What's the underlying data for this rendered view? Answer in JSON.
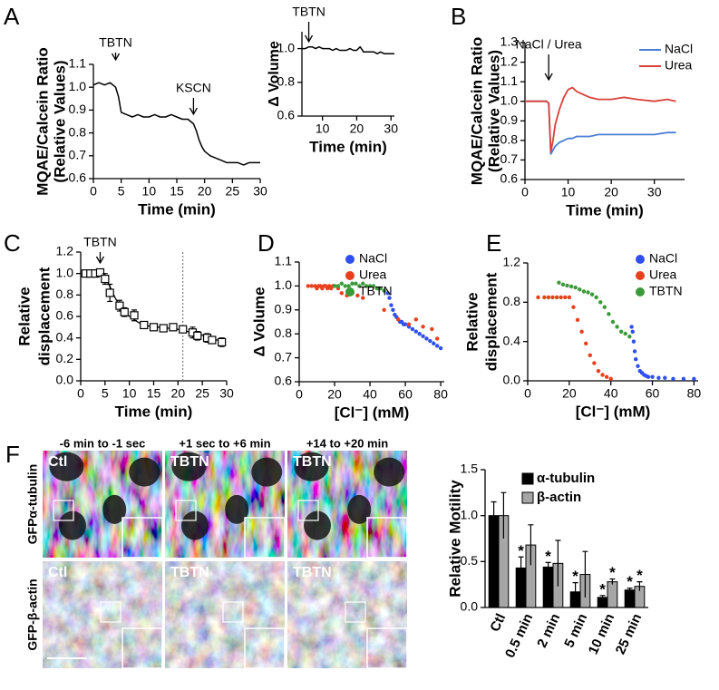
{
  "chart_data": [
    {
      "type": "line",
      "panel": "A",
      "ylabel": [
        "MQAE/Calcein Ratio",
        "(Relative Values)"
      ],
      "xlabel": "Time (min)",
      "xlim": [
        0,
        30
      ],
      "ylim": [
        0.6,
        1.1
      ],
      "xticks": [
        0,
        5,
        10,
        15,
        20,
        25,
        30
      ],
      "yticks": [
        0.6,
        0.7,
        0.8,
        0.9,
        {
          "value": 1,
          "label": "1.0"
        },
        1.1
      ],
      "color": "#000000",
      "annotations": [
        {
          "text": "TBTN",
          "x": 4
        },
        {
          "text": "KSCN",
          "x": 18
        }
      ],
      "x": [
        0,
        1,
        2,
        3,
        3.5,
        4,
        4.5,
        5,
        6,
        7,
        8,
        9,
        10,
        11,
        12,
        13,
        14,
        15,
        16,
        17,
        17.5,
        18,
        18.5,
        19,
        19.5,
        20,
        21,
        22,
        23,
        24,
        25,
        26,
        27,
        28,
        29,
        30
      ],
      "values": [
        1.01,
        1.02,
        1.01,
        1.02,
        1.01,
        1.0,
        0.96,
        0.89,
        0.88,
        0.87,
        0.88,
        0.87,
        0.87,
        0.88,
        0.87,
        0.87,
        0.88,
        0.87,
        0.86,
        0.86,
        0.85,
        0.84,
        0.81,
        0.77,
        0.74,
        0.72,
        0.7,
        0.69,
        0.68,
        0.67,
        0.67,
        0.67,
        0.66,
        0.67,
        0.67,
        0.67
      ]
    },
    {
      "type": "line",
      "ylabel": "Δ Volume",
      "xlabel": "Time (min)",
      "xlim": [
        4,
        31
      ],
      "ylim": [
        0.6,
        1.1
      ],
      "xticks": [
        10,
        20,
        30
      ],
      "yticks": [
        0.6,
        0.8,
        {
          "value": 1,
          "label": "1.0"
        }
      ],
      "color": "#000000",
      "annotations": [
        {
          "text": "TBTN",
          "x": 6
        }
      ],
      "x": [
        4,
        5,
        6,
        7,
        8,
        9,
        10,
        11,
        12,
        13,
        14,
        15,
        16,
        17,
        18,
        19,
        20,
        21,
        22,
        23,
        24,
        25,
        26,
        27,
        28,
        29,
        30,
        31
      ],
      "values": [
        1.0,
        1.0,
        1.01,
        1.01,
        1.0,
        1.01,
        1.0,
        1.0,
        1.0,
        0.99,
        1.0,
        0.99,
        0.99,
        0.99,
        1.0,
        0.99,
        0.99,
        1.01,
        0.98,
        0.98,
        0.98,
        0.98,
        0.97,
        0.98,
        0.97,
        0.97,
        0.97,
        0.97
      ]
    },
    {
      "type": "line",
      "panel": "B",
      "ylabel": [
        "MQAE/Calcein Ratio",
        "(Relative Values)"
      ],
      "xlabel": "Time (min)",
      "xlim": [
        0,
        37
      ],
      "ylim": [
        0.6,
        1.3
      ],
      "xticks": [
        0,
        10,
        20,
        30
      ],
      "yticks": [
        0.6,
        0.7,
        0.8,
        0.9,
        {
          "value": 1,
          "label": "1.0"
        },
        1.1,
        1.2,
        1.3
      ],
      "legend": "upper right",
      "annotations": [
        {
          "text": "NaCl / Urea",
          "x": 5.5
        }
      ],
      "x": [
        0,
        2,
        4,
        5,
        5.5,
        6,
        6.5,
        7,
        8,
        9,
        10,
        11,
        12,
        13,
        15,
        17,
        20,
        23,
        26,
        30,
        33,
        35
      ],
      "series": [
        {
          "name": "NaCl",
          "color": "#4a7fd4",
          "values": [
            1.0,
            1.0,
            1.0,
            1.0,
            0.99,
            0.73,
            0.75,
            0.77,
            0.79,
            0.8,
            0.81,
            0.81,
            0.82,
            0.82,
            0.82,
            0.83,
            0.83,
            0.83,
            0.83,
            0.83,
            0.84,
            0.84
          ]
        },
        {
          "name": "Urea",
          "color": "#d9403a",
          "values": [
            1.0,
            1.0,
            1.0,
            1.0,
            0.99,
            0.74,
            0.8,
            0.88,
            0.96,
            1.02,
            1.06,
            1.07,
            1.05,
            1.04,
            1.02,
            1.01,
            1.01,
            1.02,
            1.01,
            1.0,
            1.01,
            1.0
          ]
        }
      ]
    },
    {
      "type": "errorbar",
      "panel": "C",
      "ylabel": [
        "Relative",
        "displacement"
      ],
      "xlabel": "Time (min)",
      "xlim": [
        0,
        30
      ],
      "ylim": [
        0,
        1.2
      ],
      "xticks": [
        0,
        5,
        10,
        15,
        20,
        25,
        30
      ],
      "yticks": [
        {
          "value": 0,
          "label": "0.0"
        },
        0.2,
        0.4,
        0.6,
        0.8,
        {
          "value": 1,
          "label": "1.0"
        },
        1.2
      ],
      "annotations": [
        {
          "text": "TBTN",
          "x": 4
        }
      ],
      "vline": 21,
      "x": [
        1,
        2,
        3,
        4,
        5,
        6,
        8,
        9,
        11,
        13,
        15,
        17,
        19,
        21,
        23,
        24,
        26,
        27,
        29
      ],
      "values": [
        1.0,
        1.0,
        1.0,
        1.01,
        0.95,
        0.82,
        0.7,
        0.64,
        0.61,
        0.52,
        0.5,
        0.49,
        0.5,
        0.48,
        0.45,
        0.42,
        0.4,
        0.38,
        0.36
      ],
      "errors": [
        0.02,
        0.02,
        0.02,
        0.03,
        0.05,
        0.08,
        0.05,
        0.04,
        0.05,
        0.03,
        0.03,
        0.03,
        0.03,
        0.03,
        0.05,
        0.04,
        0.04,
        0.03,
        0.04
      ],
      "fit": {
        "x": [
          4,
          5,
          6,
          7,
          8,
          9,
          10,
          12,
          14,
          16,
          18,
          20,
          22,
          24,
          26,
          28,
          29
        ],
        "values": [
          1.02,
          0.97,
          0.88,
          0.78,
          0.7,
          0.64,
          0.6,
          0.54,
          0.51,
          0.5,
          0.49,
          0.48,
          0.46,
          0.44,
          0.41,
          0.38,
          0.37
        ]
      }
    },
    {
      "type": "scatter",
      "panel": "D",
      "ylabel": "Δ Volume",
      "xlabel": "[Cl⁻] (mM)",
      "xlim": [
        0,
        82
      ],
      "ylim": [
        0.6,
        1.1
      ],
      "xticks": [
        0,
        20,
        40,
        60,
        80
      ],
      "yticks": [
        0.6,
        0.7,
        0.8,
        0.9,
        {
          "value": 1,
          "label": "1.0"
        },
        1.1
      ],
      "legend": "upper center",
      "series": [
        {
          "name": "NaCl",
          "color": "#2f4ff0",
          "x": [
            50,
            51,
            52,
            53,
            54,
            55,
            56,
            57,
            58,
            59,
            60,
            62,
            64,
            66,
            68,
            70,
            72,
            74,
            76,
            78,
            80
          ],
          "values": [
            0.97,
            0.95,
            0.92,
            0.9,
            0.88,
            0.87,
            0.86,
            0.85,
            0.85,
            0.84,
            0.84,
            0.83,
            0.82,
            0.81,
            0.8,
            0.79,
            0.78,
            0.77,
            0.76,
            0.75,
            0.74
          ]
        },
        {
          "name": "Urea",
          "color": "#e8401c",
          "x": [
            5,
            7,
            9,
            10,
            11,
            12,
            13,
            14,
            15,
            16,
            17,
            18,
            19,
            20,
            22,
            24,
            27,
            30,
            33,
            36,
            48,
            56,
            62,
            66,
            70,
            75,
            78
          ],
          "values": [
            1.0,
            1.0,
            1.0,
            0.99,
            1.0,
            1.0,
            0.99,
            1.0,
            1.0,
            0.99,
            1.0,
            0.99,
            1.0,
            1.0,
            0.99,
            0.97,
            0.96,
            0.97,
            0.96,
            0.95,
            0.9,
            0.86,
            0.84,
            0.86,
            0.83,
            0.82,
            0.78
          ]
        },
        {
          "name": "TBTN",
          "color": "#3a9a3a",
          "x": [
            20,
            22,
            24,
            26,
            28,
            30,
            32,
            34,
            36,
            38,
            40,
            42,
            44,
            46,
            48
          ],
          "values": [
            1.0,
            1.0,
            1.01,
            1.0,
            1.0,
            1.01,
            1.01,
            1.0,
            1.01,
            1.0,
            1.0,
            1.0,
            0.99,
            0.99,
            0.98
          ]
        }
      ]
    },
    {
      "type": "scatter",
      "panel": "E",
      "ylabel": [
        "Relative",
        "displacement"
      ],
      "xlabel": "[Cl⁻] (mM)",
      "xlim": [
        0,
        82
      ],
      "ylim": [
        0,
        1.2
      ],
      "xticks": [
        0,
        20,
        40,
        60,
        80
      ],
      "yticks": [
        {
          "value": 0,
          "label": "0.0"
        },
        0.4,
        0.8,
        1.2
      ],
      "legend": "upper right",
      "series": [
        {
          "name": "NaCl",
          "color": "#2f4ff0",
          "x": [
            50,
            50.5,
            51,
            51.5,
            52,
            53,
            54,
            55,
            56,
            57,
            58,
            60,
            63,
            66,
            70,
            75,
            80
          ],
          "values": [
            0.55,
            0.5,
            0.4,
            0.3,
            0.22,
            0.15,
            0.1,
            0.08,
            0.06,
            0.05,
            0.04,
            0.04,
            0.03,
            0.03,
            0.02,
            0.02,
            0.02
          ]
        },
        {
          "name": "Urea",
          "color": "#e8401c",
          "x": [
            5,
            8,
            10,
            12,
            14,
            16,
            18,
            20,
            22,
            24,
            26,
            28,
            30,
            32,
            34,
            36,
            38,
            40
          ],
          "values": [
            0.85,
            0.85,
            0.85,
            0.85,
            0.85,
            0.85,
            0.85,
            0.85,
            0.75,
            0.62,
            0.5,
            0.38,
            0.26,
            0.18,
            0.1,
            0.06,
            0.04,
            0.02
          ]
        },
        {
          "name": "TBTN",
          "color": "#3a9a3a",
          "x": [
            15,
            17,
            19,
            21,
            23,
            25,
            27,
            29,
            31,
            33,
            35,
            37,
            39,
            41,
            43,
            45,
            47,
            49
          ],
          "values": [
            1.0,
            0.98,
            0.97,
            0.96,
            0.95,
            0.93,
            0.91,
            0.9,
            0.88,
            0.85,
            0.8,
            0.75,
            0.68,
            0.6,
            0.55,
            0.5,
            0.48,
            0.45
          ]
        }
      ]
    },
    {
      "type": "bar",
      "ylabel": "Relative Motility",
      "ylim": [
        0,
        1.5
      ],
      "yticks": [
        {
          "value": 0,
          "label": "0.0"
        },
        0.5,
        {
          "value": 1,
          "label": "1.0"
        },
        1.5
      ],
      "legend": "upper right",
      "categories": [
        "Ctl",
        "0.5 min",
        "2 min",
        "5 min",
        "10 min",
        "25 min"
      ],
      "series": [
        {
          "name": "α-tubulin",
          "color": "#000000",
          "values": [
            1.0,
            0.43,
            0.44,
            0.17,
            0.11,
            0.19
          ],
          "errors": [
            0.15,
            0.12,
            0.05,
            0.1,
            0.02,
            0.02
          ],
          "significance": [
            null,
            "*",
            "*",
            "*",
            "*",
            "*"
          ]
        },
        {
          "name": "β-actin",
          "color": "#a6a6a6",
          "values": [
            1.0,
            0.68,
            0.48,
            0.36,
            0.28,
            0.23
          ],
          "errors": [
            0.25,
            0.22,
            0.25,
            0.25,
            0.03,
            0.05
          ],
          "significance": [
            null,
            null,
            null,
            null,
            "*",
            "*"
          ]
        }
      ]
    }
  ],
  "images": {
    "panel": "F",
    "columns": [
      "-6 min to -1 sec",
      "+1 sec to +6 min",
      "+14 to +20 min"
    ],
    "rows": [
      {
        "label": "GFPα-tubulin",
        "cells": [
          "Ctl",
          "TBTN",
          "TBTN"
        ]
      },
      {
        "label": "GFP-β-actin",
        "cells": [
          "Ctl",
          "TBTN",
          "TBTN"
        ]
      }
    ]
  }
}
